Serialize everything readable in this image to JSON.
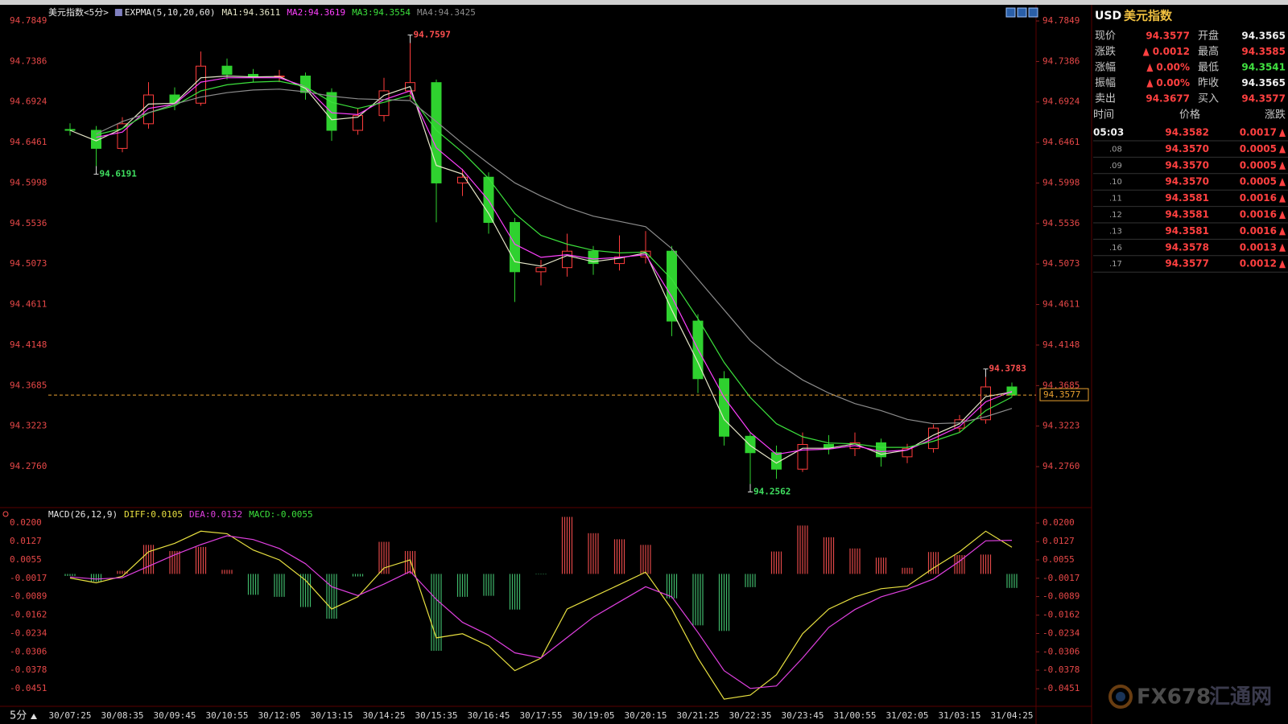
{
  "chart_data": [
    {
      "type": "candlestick",
      "title": "美元指数<5分>",
      "indicator": "EXPMA(5,10,20,60)",
      "categories": [
        "30/07:25",
        null,
        "30/08:35",
        null,
        "30/09:45",
        null,
        "30/10:55",
        null,
        "30/12:05",
        null,
        "30/13:15",
        null,
        "30/14:25",
        null,
        "30/15:35",
        null,
        "30/16:45",
        null,
        "30/17:55",
        null,
        "30/19:05",
        null,
        "30/20:15",
        null,
        "30/21:25",
        null,
        "30/22:35",
        null,
        "30/23:45",
        null,
        "31/00:55",
        null,
        "31/02:05",
        null,
        "31/03:15",
        null,
        "31/04:25"
      ],
      "open": [
        94.661,
        94.66,
        94.6394,
        94.6675,
        94.7004,
        94.691,
        94.7333,
        94.7239,
        94.721,
        94.722,
        94.7032,
        94.66,
        94.6769,
        94.7051,
        94.7145,
        94.5999,
        94.6065,
        94.5548,
        94.4985,
        94.5032,
        94.522,
        94.5079,
        94.5154,
        94.522,
        94.4422,
        94.3764,
        94.3107,
        94.2919,
        94.2731,
        94.3013,
        94.2966,
        94.3032,
        94.2872,
        94.2966,
        94.32,
        94.3295,
        94.367
      ],
      "high": [
        94.668,
        94.665,
        94.675,
        94.715,
        94.709,
        94.75,
        94.742,
        94.73,
        94.729,
        94.726,
        94.708,
        94.685,
        94.72,
        94.7597,
        94.718,
        94.616,
        94.612,
        94.56,
        94.512,
        94.542,
        94.528,
        94.54,
        94.545,
        94.528,
        94.45,
        94.385,
        94.315,
        94.3,
        94.315,
        94.312,
        94.315,
        94.308,
        94.302,
        94.324,
        94.335,
        94.3783,
        94.372
      ],
      "low": [
        94.654,
        94.6191,
        94.635,
        94.662,
        94.683,
        94.688,
        94.718,
        94.715,
        94.715,
        94.695,
        94.648,
        94.655,
        94.67,
        94.695,
        94.555,
        94.585,
        94.542,
        94.464,
        94.483,
        94.493,
        94.495,
        94.5,
        94.508,
        94.425,
        94.36,
        94.3,
        94.2562,
        94.262,
        94.27,
        94.29,
        94.288,
        94.276,
        94.28,
        94.292,
        94.315,
        94.325,
        94.355
      ],
      "close": [
        94.66,
        94.6394,
        94.6675,
        94.7004,
        94.691,
        94.7333,
        94.7239,
        94.721,
        94.722,
        94.7032,
        94.66,
        94.6769,
        94.7051,
        94.7145,
        94.5999,
        94.6065,
        94.5548,
        94.4985,
        94.5032,
        94.522,
        94.5079,
        94.5154,
        94.522,
        94.4422,
        94.3764,
        94.3107,
        94.2919,
        94.2731,
        94.3013,
        94.2966,
        94.3032,
        94.2872,
        94.2966,
        94.32,
        94.3295,
        94.367,
        94.3577
      ],
      "up_color": "#ff3c3c",
      "down_color": "#2fd12f",
      "last_price_color": "#e8a030",
      "overlays": [
        {
          "name": "MA1:94.3611",
          "color": "#e6e6c8",
          "values": [
            94.66,
            94.648,
            94.662,
            94.69,
            94.691,
            94.72,
            94.722,
            94.721,
            94.7215,
            94.708,
            94.672,
            94.675,
            94.7,
            94.71,
            94.62,
            94.61,
            94.565,
            94.51,
            94.505,
            94.517,
            94.51,
            94.514,
            94.52,
            94.455,
            94.395,
            94.33,
            94.3,
            94.28,
            94.297,
            94.297,
            94.302,
            94.29,
            94.295,
            94.312,
            94.325,
            94.356,
            94.3611
          ]
        },
        {
          "name": "MA2:94.3619",
          "color": "#ff40ff",
          "values": [
            null,
            94.652,
            94.658,
            94.685,
            94.69,
            94.715,
            94.72,
            94.72,
            94.72,
            94.71,
            94.68,
            94.678,
            94.695,
            94.705,
            94.64,
            94.615,
            94.58,
            94.53,
            94.515,
            94.518,
            94.513,
            94.515,
            94.518,
            94.47,
            94.41,
            94.355,
            94.315,
            94.29,
            94.295,
            94.296,
            94.3,
            94.293,
            94.295,
            94.308,
            94.322,
            94.35,
            94.3619
          ]
        },
        {
          "name": "MA3:94.3554",
          "color": "#3ce03c",
          "values": [
            null,
            94.655,
            94.662,
            94.68,
            94.688,
            94.705,
            94.712,
            94.715,
            94.716,
            94.71,
            94.692,
            94.685,
            94.692,
            94.7,
            94.66,
            94.635,
            94.605,
            94.565,
            94.54,
            94.53,
            94.523,
            94.52,
            94.521,
            94.49,
            94.445,
            94.395,
            94.355,
            94.325,
            94.31,
            94.303,
            94.302,
            94.298,
            94.298,
            94.305,
            94.315,
            94.34,
            94.3554
          ]
        },
        {
          "name": "MA4:94.3425",
          "color": "#8c8c8c",
          "values": [
            null,
            94.656,
            94.67,
            94.68,
            94.69,
            94.698,
            94.703,
            94.706,
            94.707,
            94.704,
            94.699,
            94.696,
            94.695,
            94.694,
            94.67,
            94.645,
            94.622,
            94.6,
            94.585,
            94.572,
            94.562,
            94.556,
            94.55,
            94.525,
            94.49,
            94.455,
            94.42,
            94.395,
            94.375,
            94.36,
            94.348,
            94.34,
            94.33,
            94.325,
            94.326,
            94.333,
            94.3425
          ]
        }
      ],
      "ylim": [
        94.2393,
        94.7978
      ],
      "yticks": [
        94.7849,
        94.7386,
        94.6924,
        94.6461,
        94.5998,
        94.5536,
        94.5073,
        94.4611,
        94.4148,
        94.3685,
        94.3223,
        {
          "value": 94.276,
          "label": "94.2760"
        }
      ],
      "grid": false
    },
    {
      "type": "macd",
      "title": "MACD(26,12,9)",
      "series": [
        {
          "name": "DIFF:0.0105",
          "color": "#e8e040",
          "values": [
            -0.0016,
            -0.0035,
            -0.0009,
            0.0087,
            0.012,
            0.0168,
            0.0158,
            0.0094,
            0.0055,
            -0.0025,
            -0.0138,
            -0.009,
            0.0023,
            0.0055,
            -0.0251,
            -0.0235,
            -0.0283,
            -0.038,
            -0.0331,
            -0.0138,
            -0.009,
            -0.0042,
            0.0007,
            -0.0138,
            -0.0331,
            -0.0492,
            -0.0476,
            -0.0396,
            -0.0235,
            -0.0138,
            -0.009,
            -0.0058,
            -0.0048,
            0.0023,
            0.0087,
            0.0168,
            0.0105
          ]
        },
        {
          "name": "DEA:0.0132",
          "color": "#e040e0",
          "values": [
            -0.0012,
            -0.002,
            -0.0015,
            0.003,
            0.0075,
            0.0115,
            0.015,
            0.0135,
            0.01,
            0.004,
            -0.005,
            -0.0085,
            -0.004,
            0.001,
            -0.01,
            -0.019,
            -0.024,
            -0.031,
            -0.033,
            -0.025,
            -0.017,
            -0.011,
            -0.005,
            -0.009,
            -0.023,
            -0.038,
            -0.045,
            -0.044,
            -0.033,
            -0.021,
            -0.014,
            -0.009,
            -0.006,
            -0.002,
            0.005,
            0.013,
            0.0132
          ]
        }
      ],
      "histogram": {
        "name": "MACD:-0.0055",
        "color": "#3ce03c",
        "up_color": "#e04848",
        "down_color": "#3fb86a",
        "values": [
          -0.0008,
          -0.003,
          0.0012,
          0.0114,
          0.009,
          0.0106,
          0.0016,
          -0.0082,
          -0.009,
          -0.013,
          -0.0176,
          -0.001,
          0.0126,
          0.009,
          -0.0302,
          -0.009,
          -0.0086,
          -0.014,
          -0.0002,
          0.0224,
          0.016,
          0.0136,
          0.0114,
          -0.0096,
          -0.0202,
          -0.0224,
          -0.0052,
          0.0088,
          0.019,
          0.0144,
          0.01,
          0.0064,
          0.0024,
          0.0086,
          0.0074,
          0.0076,
          -0.0055
        ]
      },
      "ylim": [
        -0.052,
        0.0232
      ],
      "yticks": [
        {
          "value": 0.02,
          "label": "0.0200"
        },
        0.0127,
        0.0055,
        -0.0017,
        -0.0089,
        -0.0162,
        -0.0234,
        -0.0306,
        -0.0378,
        -0.0451
      ],
      "grid": false
    }
  ],
  "period_button": "5分",
  "quote_panel": {
    "symbol": "USD",
    "name": "美元指数",
    "rows": [
      [
        "现价",
        "94.3577",
        "开盘",
        "94.3565"
      ],
      [
        "涨跌",
        "0.0012",
        "最高",
        "94.3585"
      ],
      [
        "涨幅",
        "0.00%",
        "最低",
        "94.3541"
      ],
      [
        "振幅",
        "0.00%",
        "昨收",
        "94.3565"
      ],
      [
        "卖出",
        "94.3677",
        "买入",
        "94.3577"
      ]
    ],
    "ticks_header": [
      "时间",
      "价格",
      "涨跌"
    ],
    "ticks": [
      [
        "05:03",
        "94.3582",
        "0.0017"
      ],
      [
        ".08",
        "94.3570",
        "0.0005"
      ],
      [
        ".09",
        "94.3570",
        "0.0005"
      ],
      [
        ".10",
        "94.3570",
        "0.0005"
      ],
      [
        ".11",
        "94.3581",
        "0.0016"
      ],
      [
        ".12",
        "94.3581",
        "0.0016"
      ],
      [
        ".13",
        "94.3581",
        "0.0016"
      ],
      [
        ".16",
        "94.3578",
        "0.0013"
      ],
      [
        ".17",
        "94.3577",
        "0.0012"
      ]
    ]
  },
  "watermark": {
    "brand": "FX678",
    "name": "汇通网"
  }
}
